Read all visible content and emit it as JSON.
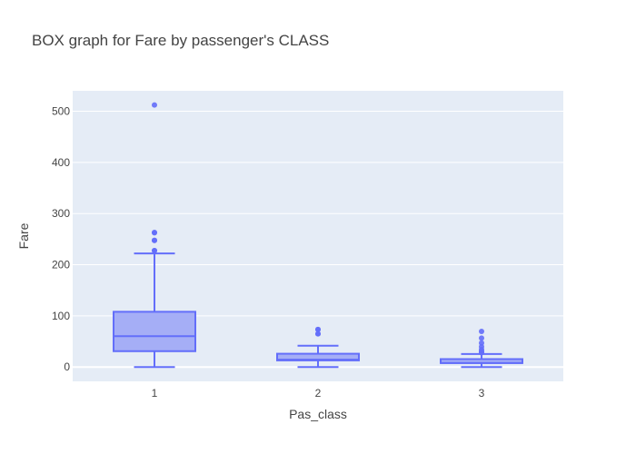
{
  "chart_data": {
    "type": "box",
    "title": "BOX graph for Fare by passenger's CLASS",
    "xlabel": "Pas_class",
    "ylabel": "Fare",
    "categories": [
      "1",
      "2",
      "3"
    ],
    "y_ticks": [
      0,
      100,
      200,
      300,
      400,
      500
    ],
    "ylim": [
      -28,
      540
    ],
    "grid": true,
    "legend": "none",
    "colors": {
      "plot_bg": "#e5ecf6",
      "grid": "#ffffff",
      "box_fill": "#a5aef6",
      "box_line": "#636efa"
    },
    "boxes": [
      {
        "category": "1",
        "min": 0,
        "q1": 31,
        "median": 60.3,
        "q3": 108,
        "max": 222,
        "outliers": [
          227.5,
          227.5,
          247.5,
          247.5,
          262.4,
          263,
          512.3
        ]
      },
      {
        "category": "2",
        "min": 0,
        "q1": 13,
        "median": 14.3,
        "q3": 26,
        "max": 41.6,
        "outliers": [
          65,
          65,
          73.5,
          73.5
        ]
      },
      {
        "category": "3",
        "min": 0,
        "q1": 7.75,
        "median": 8.05,
        "q3": 15.5,
        "max": 25.5,
        "outliers": [
          27.9,
          29.1,
          31.3,
          34.4,
          39.7,
          46.9,
          56.5,
          69.55
        ]
      }
    ]
  }
}
